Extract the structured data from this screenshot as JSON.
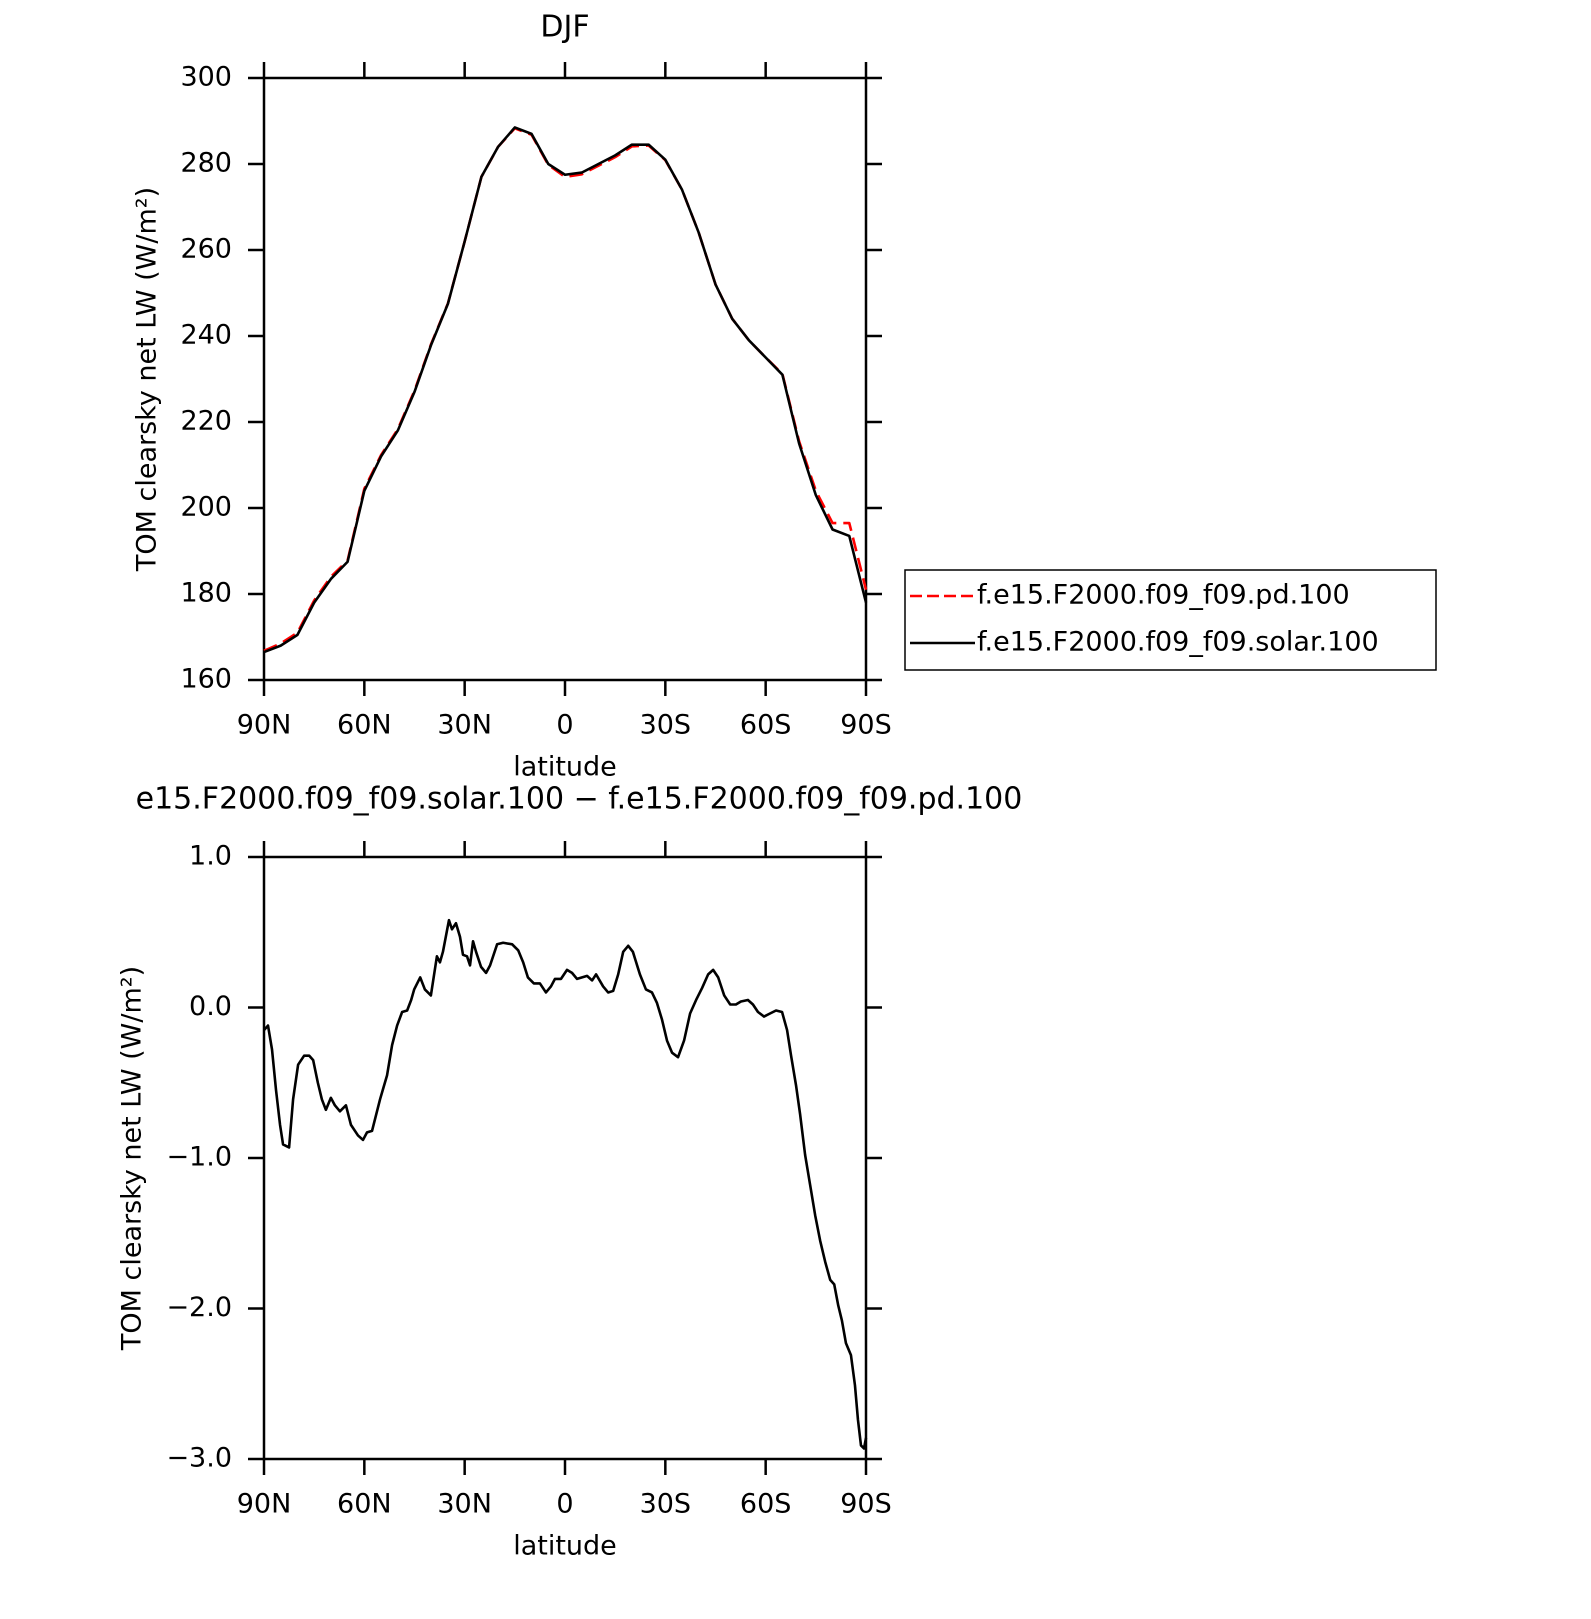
{
  "chart_data": [
    {
      "type": "line",
      "title": "DJF",
      "xlabel": "latitude",
      "ylabel": "TOM clearsky net LW (W/m²)",
      "x": [
        90,
        85,
        80,
        75,
        70,
        65,
        60,
        55,
        50,
        45,
        40,
        35,
        30,
        25,
        20,
        15,
        10,
        5,
        0,
        -5,
        -10,
        -15,
        -20,
        -25,
        -30,
        -35,
        -40,
        -45,
        -50,
        -55,
        -60,
        -65,
        -70,
        -75,
        -80,
        -85,
        -90
      ],
      "xlim": [
        90,
        -90
      ],
      "xticks": [
        {
          "value": 90,
          "label": "90N"
        },
        {
          "value": 60,
          "label": "60N"
        },
        {
          "value": 30,
          "label": "30N"
        },
        0,
        {
          "value": -30,
          "label": "30S"
        },
        {
          "value": -60,
          "label": "60S"
        },
        {
          "value": -90,
          "label": "90S"
        }
      ],
      "ylim": [
        160,
        300
      ],
      "yticks": [
        160,
        180,
        200,
        220,
        240,
        260,
        280,
        300
      ],
      "legend": "right",
      "series": [
        {
          "name": "f.e15.F2000.f09_f09.pd.100",
          "color": "#ff0000",
          "line_style": "dashed",
          "values": [
            166.8,
            168.5,
            171,
            178.5,
            184,
            187.8,
            204.5,
            212.3,
            218.3,
            227.3,
            238.2,
            247.6,
            262,
            277,
            284,
            288.3,
            286.8,
            279.8,
            277,
            277.6,
            279.6,
            281.6,
            284.1,
            284.3,
            280.9,
            274,
            264,
            252,
            244,
            239,
            235,
            231.2,
            215.5,
            204,
            196.5,
            196.5,
            181
          ]
        },
        {
          "name": "f.e15.F2000.f09_f09.solar.100",
          "color": "#000000",
          "line_style": "solid",
          "values": [
            166.5,
            168,
            170.5,
            178,
            183.5,
            187.5,
            204,
            212,
            218,
            227,
            238,
            247.5,
            262,
            277,
            284,
            288.5,
            287,
            280,
            277.5,
            278,
            280,
            282,
            284.5,
            284.5,
            281,
            274,
            264,
            252,
            244,
            239,
            235,
            231,
            215,
            203,
            195,
            193.5,
            178
          ]
        }
      ]
    },
    {
      "type": "line",
      "title": "e15.F2000.f09_f09.solar.100 − f.e15.F2000.f09_f09.pd.100",
      "xlabel": "latitude",
      "ylabel": "TOM clearsky net LW (W/m²)",
      "x": [
        90,
        88.8,
        87.6,
        86.4,
        85.2,
        84.3,
        82.5,
        81.3,
        79.8,
        78,
        76.5,
        75.3,
        73.9,
        72.7,
        71.5,
        70,
        68.8,
        67.3,
        65.5,
        64,
        61.9,
        60.4,
        59.2,
        57.7,
        55.3,
        53.2,
        51.7,
        50.2,
        48.7,
        47.2,
        46,
        45.1,
        43.3,
        41.9,
        40.1,
        38.3,
        37.4,
        36.5,
        34.7,
        33.8,
        32.6,
        31.4,
        30.5,
        29.3,
        28.4,
        27.5,
        26.6,
        25.1,
        23.6,
        22.4,
        20.3,
        18.5,
        15.8,
        14,
        12.5,
        11.1,
        9.3,
        7.5,
        5.7,
        4.2,
        3,
        1.2,
        -0.6,
        -2.1,
        -3.6,
        -5.1,
        -6.6,
        -8.1,
        -9.3,
        -11.4,
        -12.9,
        -14.4,
        -15.9,
        -17.4,
        -18.9,
        -20.3,
        -22.4,
        -24.2,
        -26,
        -27.5,
        -29,
        -30.5,
        -32,
        -33.8,
        -35.6,
        -37.4,
        -39.2,
        -41,
        -42.8,
        -44.3,
        -45.8,
        -47.6,
        -49.4,
        -51.1,
        -52.6,
        -54.7,
        -56.2,
        -57.7,
        -59.5,
        -61.3,
        -63.1,
        -64.9,
        -66.4,
        -67.6,
        -69.1,
        -70.3,
        -71.8,
        -73.3,
        -74.8,
        -76.3,
        -77.8,
        -79.3,
        -80.5,
        -81.7,
        -82.8,
        -84,
        -85.5,
        -86.7,
        -87.6,
        -88.5,
        -89.4,
        -90
      ],
      "values": [
        -0.15,
        -0.12,
        -0.28,
        -0.55,
        -0.78,
        -0.91,
        -0.93,
        -0.61,
        -0.38,
        -0.32,
        -0.32,
        -0.35,
        -0.5,
        -0.61,
        -0.68,
        -0.6,
        -0.65,
        -0.69,
        -0.65,
        -0.78,
        -0.85,
        -0.88,
        -0.83,
        -0.82,
        -0.61,
        -0.45,
        -0.25,
        -0.12,
        -0.03,
        -0.02,
        0.05,
        0.12,
        0.2,
        0.12,
        0.08,
        0.34,
        0.3,
        0.37,
        0.58,
        0.52,
        0.56,
        0.47,
        0.35,
        0.34,
        0.28,
        0.44,
        0.37,
        0.27,
        0.23,
        0.28,
        0.42,
        0.43,
        0.42,
        0.38,
        0.3,
        0.2,
        0.16,
        0.16,
        0.1,
        0.14,
        0.19,
        0.19,
        0.25,
        0.23,
        0.19,
        0.2,
        0.21,
        0.18,
        0.22,
        0.14,
        0.1,
        0.11,
        0.22,
        0.37,
        0.41,
        0.37,
        0.22,
        0.12,
        0.1,
        0.03,
        -0.08,
        -0.22,
        -0.3,
        -0.33,
        -0.22,
        -0.04,
        0.05,
        0.13,
        0.22,
        0.25,
        0.2,
        0.08,
        0.02,
        0.02,
        0.04,
        0.05,
        0.02,
        -0.03,
        -0.06,
        -0.04,
        -0.02,
        -0.03,
        -0.15,
        -0.32,
        -0.52,
        -0.71,
        -0.98,
        -1.18,
        -1.38,
        -1.55,
        -1.69,
        -1.81,
        -1.84,
        -1.98,
        -2.08,
        -2.23,
        -2.31,
        -2.51,
        -2.74,
        -2.91,
        -2.93,
        -2.86
      ],
      "color": "#000000",
      "xlim": [
        90,
        -90
      ],
      "xticks": [
        {
          "value": 90,
          "label": "90N"
        },
        {
          "value": 60,
          "label": "60N"
        },
        {
          "value": 30,
          "label": "30N"
        },
        0,
        {
          "value": -30,
          "label": "30S"
        },
        {
          "value": -60,
          "label": "60S"
        },
        {
          "value": -90,
          "label": "90S"
        }
      ],
      "ylim": [
        -3,
        1
      ],
      "yticks": [
        {
          "value": -3,
          "label": "−3.0"
        },
        {
          "value": -2,
          "label": "−2.0"
        },
        {
          "value": -1,
          "label": "−1.0"
        },
        {
          "value": 0,
          "label": "0.0"
        },
        {
          "value": 1,
          "label": "1.0"
        }
      ]
    }
  ]
}
